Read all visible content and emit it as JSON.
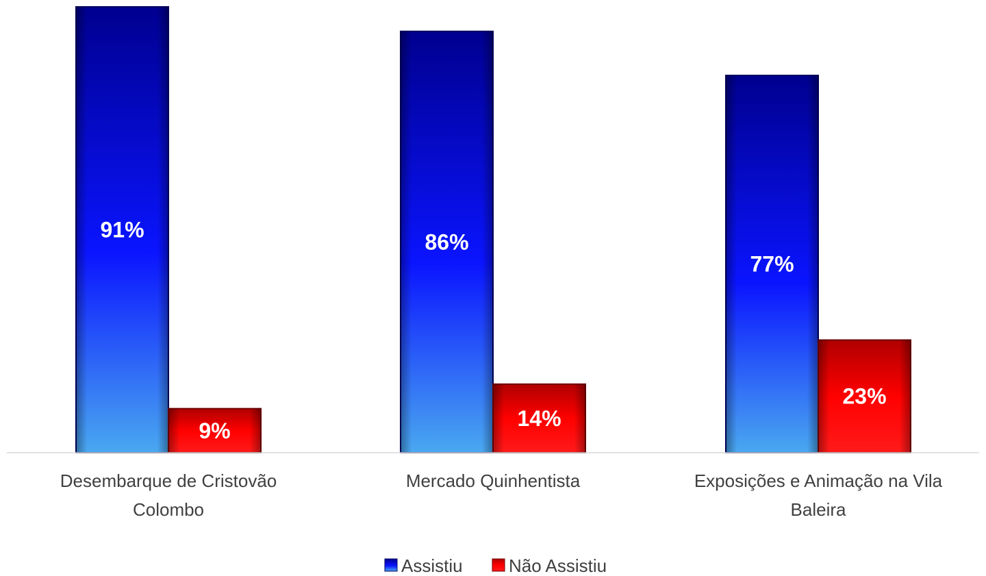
{
  "chart_data": {
    "type": "bar",
    "categories": [
      [
        "Desembarque de Cristovão",
        "Colombo"
      ],
      [
        "Mercado Quinhentista"
      ],
      [
        "Exposições e Animação na Vila",
        "Baleira"
      ]
    ],
    "series": [
      {
        "name": "Assistiu",
        "values": [
          91,
          86,
          77
        ],
        "labels": [
          "91%",
          "86%",
          "77%"
        ],
        "color": "#0000ee"
      },
      {
        "name": "Não Assistiu",
        "values": [
          9,
          14,
          23
        ],
        "labels": [
          "9%",
          "14%",
          "23%"
        ],
        "color": "#ee0000"
      }
    ],
    "title": "",
    "xlabel": "",
    "ylabel": "",
    "ylim": [
      0,
      91
    ],
    "grid": false,
    "legend": "bottom-center"
  }
}
